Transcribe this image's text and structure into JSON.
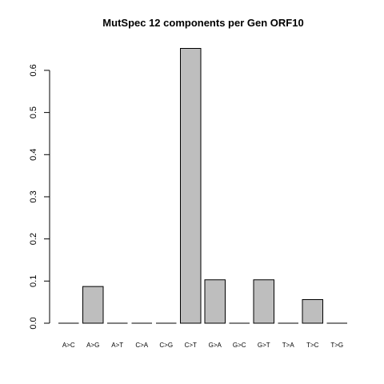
{
  "chart_data": {
    "type": "bar",
    "title": "MutSpec 12 components per Gen ORF10",
    "categories": [
      "A>C",
      "A>G",
      "A>T",
      "C>A",
      "C>G",
      "C>T",
      "G>A",
      "G>C",
      "G>T",
      "T>A",
      "T>C",
      "T>G"
    ],
    "values": [
      0,
      0.087,
      0,
      0,
      0,
      0.652,
      0.103,
      0,
      0.103,
      0,
      0.056,
      0
    ],
    "color": "#bebebe",
    "ylim": [
      0,
      0.65
    ],
    "yticks": [
      {
        "value": 0,
        "label": "0.0"
      },
      0.1,
      0.2,
      0.3,
      0.4,
      0.5,
      0.6
    ]
  }
}
